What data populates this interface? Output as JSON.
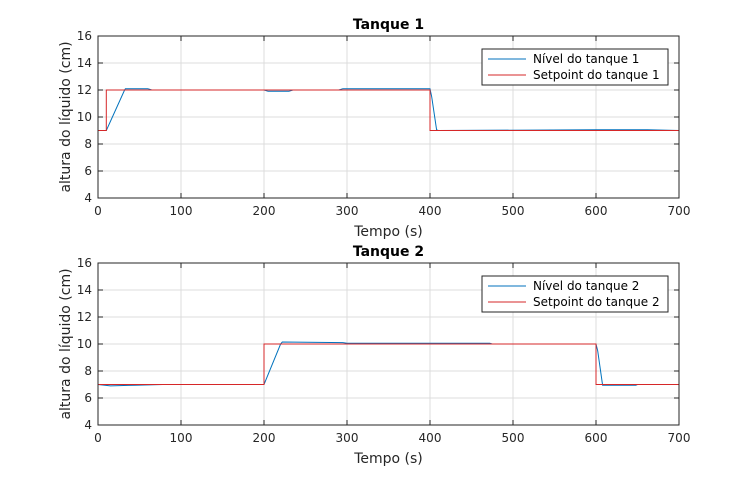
{
  "chart_data": [
    {
      "type": "line",
      "title": "Tanque 1",
      "xlabel": "Tempo (s)",
      "ylabel": "altura do líquido (cm)",
      "xlim": [
        0,
        700
      ],
      "ylim": [
        4,
        16
      ],
      "xticks": [
        0,
        100,
        200,
        300,
        400,
        500,
        600,
        700
      ],
      "yticks": [
        4,
        6,
        8,
        10,
        12,
        14,
        16
      ],
      "grid": true,
      "legend": "top-right",
      "series": [
        {
          "name": "Nível do tanque 1",
          "color": "#0072bd",
          "x": [
            0,
            10,
            32,
            33,
            60,
            65,
            200,
            205,
            230,
            235,
            290,
            295,
            400,
            402,
            408,
            410,
            600,
            662,
            700
          ],
          "y": [
            9,
            9,
            12,
            12.1,
            12.1,
            12.0,
            12.0,
            11.9,
            11.9,
            12.0,
            12.0,
            12.1,
            12.1,
            11.5,
            9.05,
            9.0,
            9.05,
            9.05,
            9.0
          ]
        },
        {
          "name": "Setpoint do tanque 1",
          "color": "#d62728",
          "x": [
            0,
            10,
            10,
            400,
            400,
            700
          ],
          "y": [
            9,
            9,
            12,
            12,
            9,
            9
          ]
        }
      ]
    },
    {
      "type": "line",
      "title": "Tanque 2",
      "xlabel": "Tempo (s)",
      "ylabel": "altura do líquido (cm)",
      "xlim": [
        0,
        700
      ],
      "ylim": [
        4,
        16
      ],
      "xticks": [
        0,
        100,
        200,
        300,
        400,
        500,
        600,
        700
      ],
      "yticks": [
        4,
        6,
        8,
        10,
        12,
        14,
        16
      ],
      "grid": true,
      "legend": "top-right",
      "series": [
        {
          "name": "Nível do tanque 2",
          "color": "#0072bd",
          "x": [
            0,
            15,
            45,
            78,
            200,
            220,
            222,
            295,
            300,
            472,
            475,
            600,
            602,
            608,
            648,
            650,
            700
          ],
          "y": [
            7,
            6.9,
            6.95,
            7.0,
            7.0,
            10.0,
            10.15,
            10.1,
            10.05,
            10.05,
            10.0,
            10.0,
            9.5,
            6.95,
            6.95,
            7.0,
            7.0
          ]
        },
        {
          "name": "Setpoint do tanque 2",
          "color": "#d62728",
          "x": [
            0,
            200,
            200,
            600,
            600,
            700
          ],
          "y": [
            7,
            7,
            10,
            10,
            7,
            7
          ]
        }
      ]
    }
  ]
}
